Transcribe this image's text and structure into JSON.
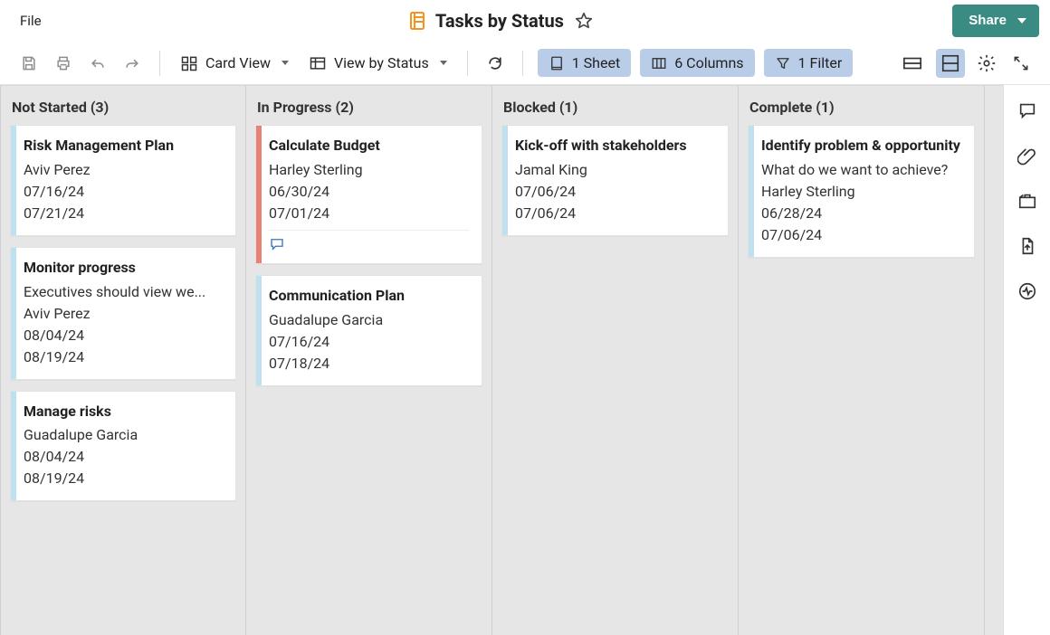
{
  "header": {
    "file_label": "File",
    "title": "Tasks by Status",
    "share_label": "Share",
    "sheet_icon_color": "#f5931f"
  },
  "toolbar": {
    "card_view_label": "Card View",
    "view_by_label": "View by Status",
    "sheets_label": "1 Sheet",
    "columns_label": "6 Columns",
    "filters_label": "1 Filter",
    "pill_bg": "#b9cde8"
  },
  "colors": {
    "board_bg": "#e6e6e6",
    "accent": "#3a8c83",
    "stripe_default": "#bfe0ef",
    "stripe_alert": "#e98176"
  },
  "columns": [
    {
      "id": "not-started",
      "title": "Not Started",
      "count": 3,
      "cards": [
        {
          "title": "Risk Management Plan",
          "assignee": "Aviv Perez",
          "start": "07/16/24",
          "end": "07/21/24",
          "stripe": "#bfe0ef"
        },
        {
          "title": "Monitor progress",
          "subtitle": "Executives should view we...",
          "assignee": "Aviv Perez",
          "start": "08/04/24",
          "end": "08/19/24",
          "stripe": "#bfe0ef"
        },
        {
          "title": "Manage risks",
          "assignee": "Guadalupe Garcia",
          "start": "08/04/24",
          "end": "08/19/24",
          "stripe": "#bfe0ef"
        }
      ]
    },
    {
      "id": "in-progress",
      "title": "In Progress",
      "count": 2,
      "cards": [
        {
          "title": "Calculate Budget",
          "assignee": "Harley Sterling",
          "start": "06/30/24",
          "end": "07/01/24",
          "stripe": "#e98176",
          "has_comment": true
        },
        {
          "title": "Communication Plan",
          "assignee": "Guadalupe Garcia",
          "start": "07/16/24",
          "end": "07/18/24",
          "stripe": "#bfe0ef"
        }
      ]
    },
    {
      "id": "blocked",
      "title": "Blocked",
      "count": 1,
      "cards": [
        {
          "title": "Kick-off with stakeholders",
          "assignee": "Jamal King",
          "start": "07/06/24",
          "end": "07/06/24",
          "stripe": "#bfe0ef"
        }
      ]
    },
    {
      "id": "complete",
      "title": "Complete",
      "count": 1,
      "cards": [
        {
          "title": "Identify problem & opportunity",
          "subtitle": "What do we want to achieve?",
          "assignee": "Harley Sterling",
          "start": "06/28/24",
          "end": "07/06/24",
          "stripe": "#bfe0ef"
        }
      ]
    }
  ]
}
